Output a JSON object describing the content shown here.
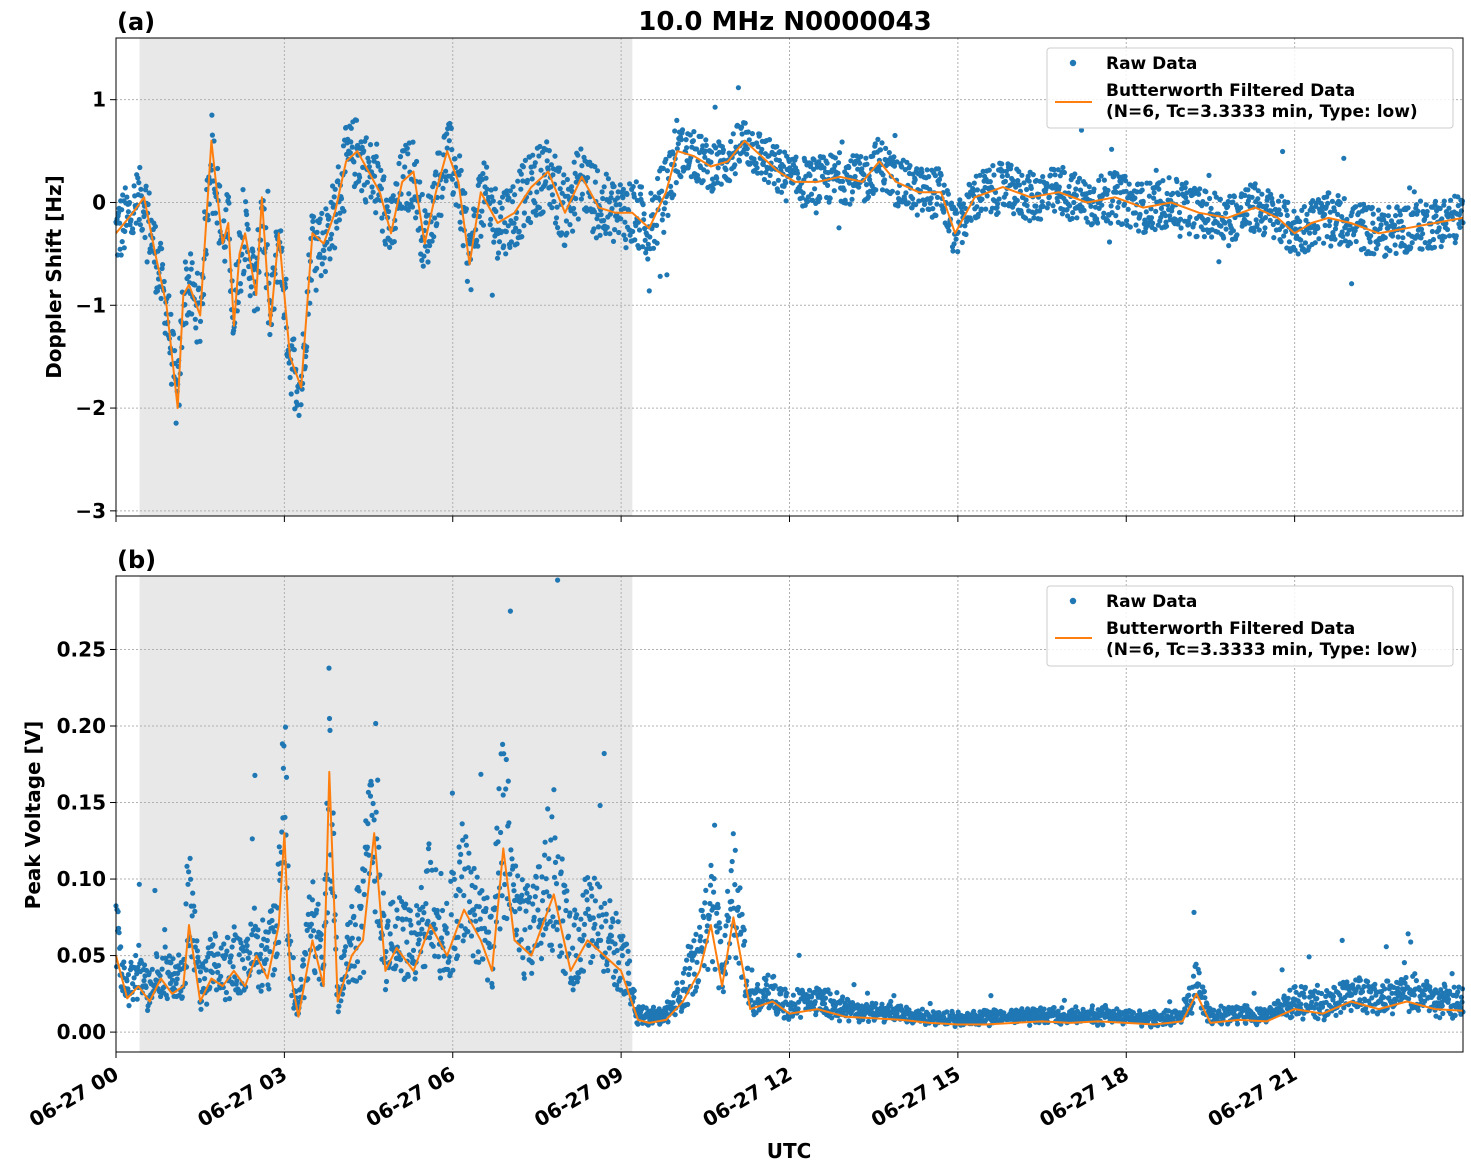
{
  "figure": {
    "title": "10.0 MHz N0000043",
    "xlabel": "UTC"
  },
  "chart_data": [
    {
      "type": "scatter",
      "panel_label": "(a)",
      "ylabel": "Doppler Shift [Hz]",
      "x_unit": "hours since 06-27 00 UTC",
      "xlim": [
        0,
        24
      ],
      "ylim": [
        -3.05,
        1.6
      ],
      "yticks": [
        1,
        0,
        -1,
        -2,
        -3
      ],
      "ytick_labels": [
        "1",
        "0",
        "−1",
        "−2",
        "−3"
      ],
      "xticks": [
        0,
        3,
        6,
        9,
        12,
        15,
        18,
        21
      ],
      "xtick_labels": [
        "06-27 00",
        "06-27 03",
        "06-27 06",
        "06-27 09",
        "06-27 12",
        "06-27 15",
        "06-27 18",
        "06-27 21"
      ],
      "grid": true,
      "shaded_span": [
        0.42,
        9.2
      ],
      "legend_position": "upper right",
      "series": [
        {
          "name": "Raw Data",
          "kind": "points",
          "color": "#1f77b4",
          "spread": 0.35
        },
        {
          "name": "Butterworth Filtered Data",
          "name_line2": "(N=6, Tc=3.3333 min, Type: low)",
          "kind": "line",
          "color": "#ff7f0e",
          "x": [
            0,
            0.3,
            0.5,
            0.7,
            0.9,
            1.1,
            1.2,
            1.3,
            1.5,
            1.7,
            1.8,
            1.9,
            2.0,
            2.1,
            2.2,
            2.3,
            2.5,
            2.6,
            2.75,
            2.9,
            3.1,
            3.3,
            3.5,
            3.7,
            3.9,
            4.1,
            4.3,
            4.5,
            4.7,
            4.9,
            5.1,
            5.3,
            5.5,
            5.7,
            5.9,
            6.1,
            6.3,
            6.5,
            6.8,
            7.1,
            7.4,
            7.7,
            8.0,
            8.3,
            8.6,
            8.9,
            9.2,
            9.5,
            9.8,
            10.0,
            10.3,
            10.6,
            10.9,
            11.2,
            11.5,
            11.8,
            12.1,
            12.5,
            12.9,
            13.3,
            13.6,
            13.9,
            14.3,
            14.7,
            14.95,
            15.3,
            15.8,
            16.3,
            16.8,
            17.3,
            17.8,
            18.3,
            18.8,
            19.3,
            19.8,
            20.3,
            20.7,
            21.0,
            21.3,
            21.6,
            22.0,
            22.5,
            23.0,
            23.5,
            24.0
          ],
          "y": [
            -0.3,
            -0.1,
            0.05,
            -0.5,
            -1.0,
            -2.0,
            -0.9,
            -0.8,
            -1.1,
            0.6,
            0.1,
            -0.4,
            -0.2,
            -1.2,
            -0.5,
            -0.3,
            -0.9,
            0.05,
            -1.2,
            -0.3,
            -1.5,
            -1.8,
            -0.3,
            -0.4,
            -0.1,
            0.4,
            0.5,
            0.3,
            0.1,
            -0.3,
            0.2,
            0.3,
            -0.4,
            0.1,
            0.5,
            0.2,
            -0.6,
            0.1,
            -0.2,
            -0.1,
            0.15,
            0.3,
            -0.1,
            0.25,
            -0.05,
            -0.1,
            -0.1,
            -0.25,
            0.1,
            0.5,
            0.45,
            0.35,
            0.4,
            0.6,
            0.45,
            0.3,
            0.2,
            0.2,
            0.25,
            0.2,
            0.4,
            0.2,
            0.1,
            0.1,
            -0.3,
            0.05,
            0.15,
            0.05,
            0.1,
            0.0,
            0.05,
            -0.05,
            0.0,
            -0.1,
            -0.15,
            -0.05,
            -0.15,
            -0.3,
            -0.2,
            -0.15,
            -0.2,
            -0.3,
            -0.25,
            -0.2,
            -0.15
          ]
        }
      ]
    },
    {
      "type": "scatter",
      "panel_label": "(b)",
      "ylabel": "Peak Voltage [V]",
      "x_unit": "hours since 06-27 00 UTC",
      "xlim": [
        0,
        24
      ],
      "ylim": [
        -0.013,
        0.298
      ],
      "yticks": [
        0.0,
        0.05,
        0.1,
        0.15,
        0.2,
        0.25
      ],
      "ytick_labels": [
        "0.00",
        "0.05",
        "0.10",
        "0.15",
        "0.20",
        "0.25"
      ],
      "xticks": [
        0,
        3,
        6,
        9,
        12,
        15,
        18,
        21
      ],
      "xtick_labels": [
        "06-27 00",
        "06-27 03",
        "06-27 06",
        "06-27 09",
        "06-27 12",
        "06-27 15",
        "06-27 18",
        "06-27 21"
      ],
      "grid": true,
      "shaded_span": [
        0.42,
        9.2
      ],
      "legend_position": "upper right",
      "series": [
        {
          "name": "Raw Data",
          "kind": "points",
          "color": "#1f77b4",
          "spread_ratio": 1.2
        },
        {
          "name": "Butterworth Filtered Data",
          "name_line2": "(N=6, Tc=3.3333 min, Type: low)",
          "kind": "line",
          "color": "#ff7f0e",
          "x": [
            0,
            0.2,
            0.4,
            0.6,
            0.8,
            1.0,
            1.2,
            1.3,
            1.5,
            1.7,
            1.9,
            2.1,
            2.3,
            2.5,
            2.7,
            2.9,
            3.0,
            3.1,
            3.25,
            3.5,
            3.7,
            3.8,
            3.95,
            4.2,
            4.4,
            4.6,
            4.8,
            5.0,
            5.3,
            5.6,
            5.9,
            6.2,
            6.5,
            6.7,
            6.9,
            7.1,
            7.4,
            7.8,
            8.1,
            8.4,
            8.7,
            9.0,
            9.3,
            9.5,
            9.8,
            10.1,
            10.4,
            10.6,
            10.8,
            11.0,
            11.3,
            11.7,
            12.0,
            12.5,
            13.0,
            13.5,
            14.0,
            14.5,
            15.0,
            15.5,
            16.0,
            16.5,
            17.0,
            17.5,
            18.0,
            18.5,
            19.0,
            19.25,
            19.5,
            20.0,
            20.5,
            21.0,
            21.5,
            22.0,
            22.5,
            23.0,
            23.5,
            24.0
          ],
          "y": [
            0.05,
            0.022,
            0.03,
            0.02,
            0.035,
            0.025,
            0.03,
            0.07,
            0.02,
            0.035,
            0.03,
            0.04,
            0.03,
            0.05,
            0.035,
            0.07,
            0.13,
            0.04,
            0.01,
            0.06,
            0.03,
            0.17,
            0.02,
            0.05,
            0.06,
            0.13,
            0.04,
            0.055,
            0.04,
            0.07,
            0.05,
            0.08,
            0.06,
            0.04,
            0.12,
            0.06,
            0.05,
            0.09,
            0.04,
            0.06,
            0.05,
            0.04,
            0.008,
            0.006,
            0.008,
            0.02,
            0.04,
            0.07,
            0.03,
            0.075,
            0.015,
            0.02,
            0.012,
            0.015,
            0.01,
            0.009,
            0.008,
            0.006,
            0.005,
            0.005,
            0.006,
            0.007,
            0.006,
            0.007,
            0.006,
            0.005,
            0.007,
            0.025,
            0.006,
            0.008,
            0.007,
            0.015,
            0.012,
            0.02,
            0.015,
            0.02,
            0.015,
            0.014
          ]
        }
      ]
    }
  ]
}
